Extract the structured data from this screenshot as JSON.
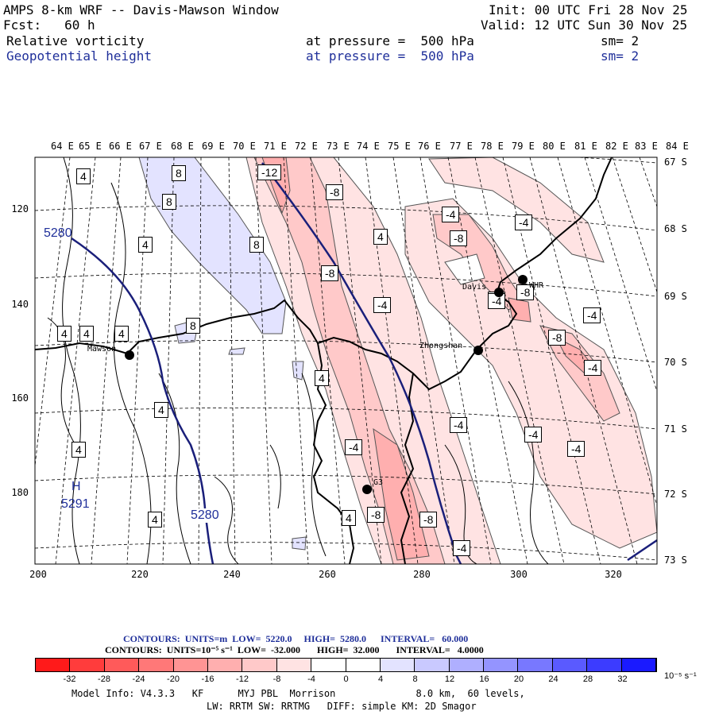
{
  "header": {
    "title": "AMPS 8-km WRF -- Davis-Mawson Window",
    "init": "Init: 00 UTC Fri 28 Nov 25",
    "fcst": "Fcst:   60 h",
    "valid": "Valid: 12 UTC Sun 30 Nov 25",
    "field1": "Relative vorticity",
    "field1_level": "at pressure =  500 hPa",
    "field1_sm": "sm= 2",
    "field2": "Geopotential height",
    "field2_level": "at pressure =  500 hPa",
    "field2_sm": "sm= 2"
  },
  "axes": {
    "lon_labels": [
      "64 E",
      "65 E",
      "66 E",
      "67 E",
      "68 E",
      "69 E",
      "70 E",
      "71 E",
      "72 E",
      "73 E",
      "74 E",
      "75 E",
      "76 E",
      "77 E",
      "78 E",
      "79 E",
      "80 E",
      "81 E",
      "82 E",
      "83 E",
      "84 E"
    ],
    "lat_labels": [
      "67 S",
      "68 S",
      "69 S",
      "70 S",
      "71 S",
      "72 S",
      "73 S"
    ],
    "y_labels": [
      "120",
      "140",
      "160",
      "180"
    ],
    "x_labels": [
      "200",
      "220",
      "240",
      "260",
      "280",
      "300",
      "320"
    ]
  },
  "stations": [
    {
      "name": "Mawson"
    },
    {
      "name": "Davis"
    },
    {
      "name": "WHR"
    },
    {
      "name": "Zhongshan"
    },
    {
      "name": "G3"
    }
  ],
  "contour_labels": [
    {
      "text": "4"
    },
    {
      "text": "8"
    },
    {
      "text": "8"
    },
    {
      "text": "4"
    },
    {
      "text": "8"
    },
    {
      "text": "4"
    },
    {
      "text": "4"
    },
    {
      "text": "8"
    },
    {
      "text": "4"
    },
    {
      "text": "4"
    },
    {
      "text": "4"
    },
    {
      "text": "4"
    },
    {
      "text": "4"
    },
    {
      "text": "4"
    },
    {
      "text": "-12"
    },
    {
      "text": "-8"
    },
    {
      "text": "-8"
    },
    {
      "text": "-4"
    },
    {
      "text": "-4"
    },
    {
      "text": "-4"
    },
    {
      "text": "-8"
    },
    {
      "text": "-4"
    },
    {
      "text": "-4"
    },
    {
      "text": "4"
    },
    {
      "text": "-8"
    },
    {
      "text": "-4"
    },
    {
      "text": "-8"
    },
    {
      "text": "-4"
    },
    {
      "text": "-4"
    },
    {
      "text": "-4"
    },
    {
      "text": "-4"
    },
    {
      "text": "-4"
    },
    {
      "text": "-8"
    },
    {
      "text": "-8"
    },
    {
      "text": "-4"
    }
  ],
  "height_labels": {
    "h1": "5280",
    "h2": "5280",
    "h_marker": "H",
    "h_value": "5291"
  },
  "contour_info": {
    "line1": "CONTOURS:  UNITS=m  LOW=  5220.0     HIGH=  5280.0      INTERVAL=   60.000",
    "line2": "CONTOURS:  UNITS=10⁻⁵ s⁻¹  LOW=  -32.000       HIGH=  32.000       INTERVAL=   4.0000"
  },
  "colorbar": {
    "labels": [
      "-32",
      "-28",
      "-24",
      "-20",
      "-16",
      "-12",
      "-8",
      "-4",
      "0",
      "4",
      "8",
      "12",
      "16",
      "20",
      "24",
      "28",
      "32"
    ],
    "units": "10⁻⁵ s⁻¹",
    "colors": [
      "#ff1a1a",
      "#ff3c3c",
      "#ff5a5a",
      "#ff7878",
      "#ff9494",
      "#ffafaf",
      "#ffc9c9",
      "#ffe3e3",
      "#ffffff",
      "#ffffff",
      "#e3e3ff",
      "#c9c9ff",
      "#afafff",
      "#9494ff",
      "#7878ff",
      "#5a5aff",
      "#3c3cff",
      "#1a1aff"
    ]
  },
  "footer": {
    "line1": "Model Info: V4.3.3   KF      MYJ PBL  Morrison              8.0 km,  60 levels,",
    "line2": "LW: RRTM SW: RRTMG   DIFF: simple KM: 2D Smagor"
  }
}
